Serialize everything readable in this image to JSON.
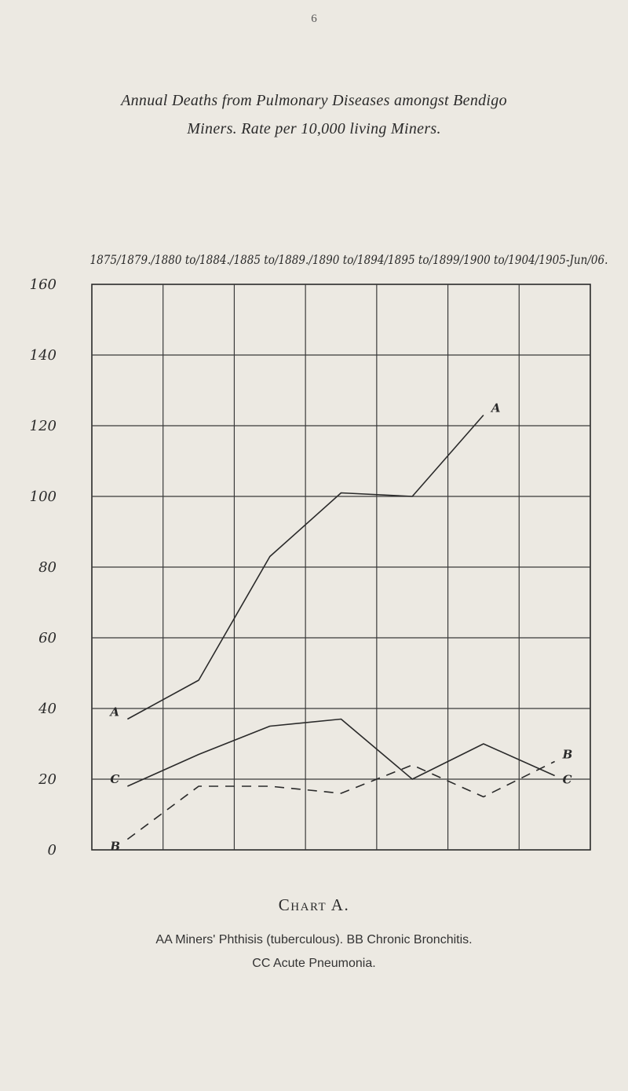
{
  "page_number": "6",
  "title_line1": "Annual Deaths from Pulmonary Diseases amongst Bendigo",
  "title_line2": "Miners. Rate per 10,000 living Miners.",
  "caption": "Chart A.",
  "legend_line1": "AA Miners' Phthisis (tuberculous).    BB Chronic Bronchitis.",
  "legend_line2": "CC Acute Pneumonia.",
  "chart_data": {
    "type": "line",
    "x_header": "1875/1879./1880 to/1884./1885 to/1889./1890 to/1894/1895 to/1899/1900 to/1904/1905-Jun/06.",
    "x": [
      "1875/1879",
      "1880/1884",
      "1885/1889",
      "1890/1894",
      "1895/1899",
      "1900/1904",
      "1905/1906"
    ],
    "ylim": [
      0,
      160
    ],
    "y_ticks": [
      0,
      20,
      40,
      60,
      80,
      100,
      120,
      140,
      160
    ],
    "y_tick_labels": [
      "0",
      "20",
      "40",
      "60",
      "80",
      "100",
      "120",
      "140",
      "160"
    ],
    "grid": true,
    "series": [
      {
        "name": "A",
        "color": "#2a2a2a",
        "dash": "solid",
        "values": [
          37,
          48,
          83,
          101,
          100,
          123,
          null
        ]
      },
      {
        "name": "B",
        "color": "#2a2a2a",
        "dash": "dashed",
        "values": [
          3,
          18,
          18,
          16,
          24,
          15,
          25
        ]
      },
      {
        "name": "C",
        "color": "#2a2a2a",
        "dash": "solid",
        "values": [
          18,
          27,
          35,
          37,
          20,
          30,
          21
        ]
      }
    ],
    "series_labels": [
      {
        "text": "A",
        "series": "A",
        "index": 0
      },
      {
        "text": "A",
        "series": "A",
        "index": 5
      },
      {
        "text": "B",
        "series": "B",
        "index": 0
      },
      {
        "text": "B",
        "series": "B",
        "index": 6
      },
      {
        "text": "C",
        "series": "C",
        "index": 0
      },
      {
        "text": "C",
        "series": "C",
        "index": 6
      }
    ]
  }
}
